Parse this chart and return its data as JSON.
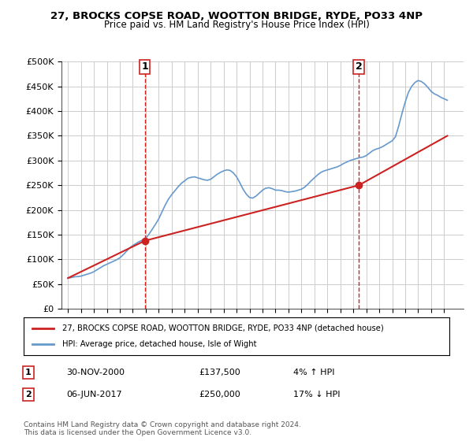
{
  "title": "27, BROCKS COPSE ROAD, WOOTTON BRIDGE, RYDE, PO33 4NP",
  "subtitle": "Price paid vs. HM Land Registry's House Price Index (HPI)",
  "ylim": [
    0,
    500000
  ],
  "yticks": [
    0,
    50000,
    100000,
    150000,
    200000,
    250000,
    300000,
    350000,
    400000,
    450000,
    500000
  ],
  "ytick_labels": [
    "£0",
    "£50K",
    "£100K",
    "£150K",
    "£200K",
    "£250K",
    "£300K",
    "£350K",
    "£400K",
    "£450K",
    "£500K"
  ],
  "hpi_color": "#6699cc",
  "price_color": "#cc2222",
  "marker_color": "#cc2222",
  "background_color": "#ffffff",
  "grid_color": "#cccccc",
  "sale1": {
    "date": 2000.92,
    "price": 137500,
    "label": "1"
  },
  "sale2": {
    "date": 2017.43,
    "price": 250000,
    "label": "2"
  },
  "legend_line1": "27, BROCKS COPSE ROAD, WOOTTON BRIDGE, RYDE, PO33 4NP (detached house)",
  "legend_line2": "HPI: Average price, detached house, Isle of Wight",
  "table_row1": [
    "1",
    "30-NOV-2000",
    "£137,500",
    "4% ↑ HPI"
  ],
  "table_row2": [
    "2",
    "06-JUN-2017",
    "£250,000",
    "17% ↓ HPI"
  ],
  "footer": "Contains HM Land Registry data © Crown copyright and database right 2024.\nThis data is licensed under the Open Government Licence v3.0.",
  "hpi_data_x": [
    1995.0,
    1995.25,
    1995.5,
    1995.75,
    1996.0,
    1996.25,
    1996.5,
    1996.75,
    1997.0,
    1997.25,
    1997.5,
    1997.75,
    1998.0,
    1998.25,
    1998.5,
    1998.75,
    1999.0,
    1999.25,
    1999.5,
    1999.75,
    2000.0,
    2000.25,
    2000.5,
    2000.75,
    2001.0,
    2001.25,
    2001.5,
    2001.75,
    2002.0,
    2002.25,
    2002.5,
    2002.75,
    2003.0,
    2003.25,
    2003.5,
    2003.75,
    2004.0,
    2004.25,
    2004.5,
    2004.75,
    2005.0,
    2005.25,
    2005.5,
    2005.75,
    2006.0,
    2006.25,
    2006.5,
    2006.75,
    2007.0,
    2007.25,
    2007.5,
    2007.75,
    2008.0,
    2008.25,
    2008.5,
    2008.75,
    2009.0,
    2009.25,
    2009.5,
    2009.75,
    2010.0,
    2010.25,
    2010.5,
    2010.75,
    2011.0,
    2011.25,
    2011.5,
    2011.75,
    2012.0,
    2012.25,
    2012.5,
    2012.75,
    2013.0,
    2013.25,
    2013.5,
    2013.75,
    2014.0,
    2014.25,
    2014.5,
    2014.75,
    2015.0,
    2015.25,
    2015.5,
    2015.75,
    2016.0,
    2016.25,
    2016.5,
    2016.75,
    2017.0,
    2017.25,
    2017.5,
    2017.75,
    2018.0,
    2018.25,
    2018.5,
    2018.75,
    2019.0,
    2019.25,
    2019.5,
    2019.75,
    2020.0,
    2020.25,
    2020.5,
    2020.75,
    2021.0,
    2021.25,
    2021.5,
    2021.75,
    2022.0,
    2022.25,
    2022.5,
    2022.75,
    2023.0,
    2023.25,
    2023.5,
    2023.75,
    2024.0,
    2024.25
  ],
  "hpi_data_y": [
    62000,
    63000,
    64500,
    65000,
    66000,
    68000,
    70000,
    72000,
    75000,
    79000,
    83000,
    87000,
    90000,
    93000,
    96000,
    99000,
    103000,
    109000,
    116000,
    123000,
    128000,
    132000,
    136000,
    139000,
    143000,
    151000,
    161000,
    171000,
    182000,
    196000,
    210000,
    222000,
    231000,
    239000,
    247000,
    254000,
    259000,
    264000,
    266000,
    267000,
    265000,
    263000,
    261000,
    260000,
    262000,
    267000,
    272000,
    276000,
    279000,
    281000,
    280000,
    275000,
    267000,
    255000,
    242000,
    232000,
    225000,
    224000,
    228000,
    234000,
    240000,
    244000,
    245000,
    243000,
    240000,
    240000,
    239000,
    237000,
    236000,
    237000,
    238000,
    240000,
    242000,
    246000,
    252000,
    259000,
    265000,
    271000,
    276000,
    279000,
    281000,
    283000,
    285000,
    287000,
    290000,
    294000,
    297000,
    300000,
    302000,
    304000,
    306000,
    307000,
    310000,
    315000,
    320000,
    323000,
    325000,
    328000,
    332000,
    336000,
    340000,
    348000,
    370000,
    395000,
    418000,
    438000,
    450000,
    458000,
    462000,
    460000,
    455000,
    448000,
    440000,
    435000,
    432000,
    428000,
    425000,
    422000
  ],
  "price_data_x": [
    1995.0,
    2000.92,
    2017.43,
    2024.25
  ],
  "price_data_y": [
    62000,
    137500,
    250000,
    350000
  ]
}
